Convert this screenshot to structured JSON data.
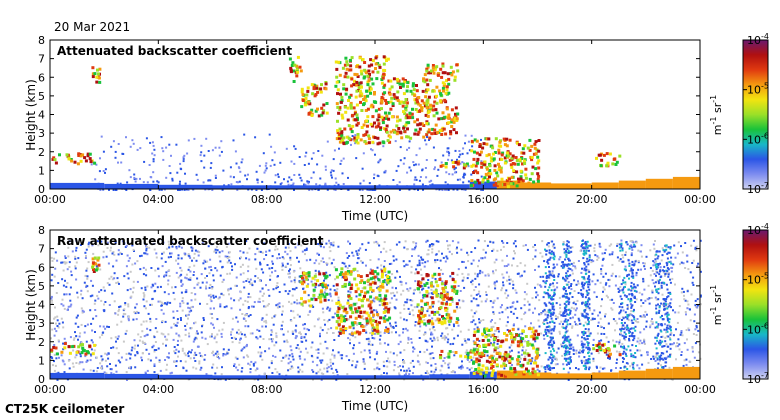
{
  "header": {
    "date": "20 Mar 2021"
  },
  "footer": {
    "instrument": "CT25K ceilometer"
  },
  "colorbar": {
    "scale": "log",
    "range": [
      1e-07,
      0.0001
    ],
    "ticks": [
      {
        "base": "10",
        "exp": "-4"
      },
      {
        "base": "10",
        "exp": "-5"
      },
      {
        "base": "10",
        "exp": "-6"
      },
      {
        "base": "10",
        "exp": "-7"
      }
    ],
    "unit": {
      "m": "m",
      "m_exp": "-1",
      "sr": "sr",
      "sr_exp": "-1"
    },
    "colors": [
      "#cfd3f2",
      "#7d8cf0",
      "#2b56e6",
      "#18b8c8",
      "#19c23a",
      "#9be028",
      "#f2e410",
      "#f59a10",
      "#e03a10",
      "#b01010",
      "#6a1a70"
    ]
  },
  "chart_data": [
    {
      "type": "heatmap",
      "title": "Attenuated backscatter coefficient",
      "xlabel": "Time (UTC)",
      "ylabel": "Height (km)",
      "xlim": [
        0,
        24
      ],
      "ylim": [
        0,
        8
      ],
      "xticks": [
        "00:00",
        "04:00",
        "08:00",
        "12:00",
        "16:00",
        "20:00",
        "00:00"
      ],
      "yticks": [
        "0",
        "1",
        "2",
        "3",
        "4",
        "5",
        "6",
        "7",
        "8"
      ],
      "features": [
        {
          "name": "boundary-layer",
          "t": [
            0,
            2,
            4,
            6,
            8,
            10,
            12,
            14,
            15.5,
            16.5,
            17.5,
            18.5,
            20,
            21,
            22,
            23,
            24
          ],
          "top_km": [
            0.35,
            0.3,
            0.25,
            0.2,
            0.2,
            0.2,
            0.2,
            0.2,
            0.3,
            0.5,
            0.4,
            0.3,
            0.3,
            0.4,
            0.5,
            0.6,
            0.7
          ]
        },
        {
          "name": "cloud-01",
          "t": [
            0,
            1.6
          ],
          "base_km": 1.4,
          "top_km": 2.0
        },
        {
          "name": "cloud-02",
          "t": [
            1.5,
            1.8
          ],
          "base_km": 5.8,
          "top_km": 6.6
        },
        {
          "name": "cloud-03",
          "t": [
            8.8,
            9.3
          ],
          "base_km": 5.8,
          "top_km": 7.2
        },
        {
          "name": "cloud-04",
          "t": [
            9.2,
            10.2
          ],
          "base_km": 4.0,
          "top_km": 5.8
        },
        {
          "name": "cloud-05",
          "t": [
            10.5,
            12.5
          ],
          "base_km": 2.5,
          "top_km": 7.2
        },
        {
          "name": "cloud-06",
          "t": [
            12.5,
            14.0
          ],
          "base_km": 2.8,
          "top_km": 6.0
        },
        {
          "name": "cloud-07",
          "t": [
            13.8,
            15.0
          ],
          "base_km": 3.0,
          "top_km": 6.8
        },
        {
          "name": "cloud-08",
          "t": [
            14.3,
            16.0
          ],
          "base_km": 1.2,
          "top_km": 1.6
        },
        {
          "name": "cloud-09",
          "t": [
            15.5,
            18.0
          ],
          "base_km": 0.2,
          "top_km": 2.8
        },
        {
          "name": "cloud-10",
          "t": [
            20.0,
            21.0
          ],
          "base_km": 1.3,
          "top_km": 2.0
        }
      ]
    },
    {
      "type": "heatmap",
      "title": "Raw attenuated backscatter coefficient",
      "xlabel": "Time (UTC)",
      "ylabel": "Height (km)",
      "xlim": [
        0,
        24
      ],
      "ylim": [
        0,
        8
      ],
      "xticks": [
        "00:00",
        "04:00",
        "08:00",
        "12:00",
        "16:00",
        "20:00",
        "00:00"
      ],
      "yticks": [
        "0",
        "1",
        "2",
        "3",
        "4",
        "5",
        "6",
        "7",
        "8"
      ],
      "features": [
        {
          "name": "boundary-layer",
          "t": [
            0,
            2,
            4,
            6,
            8,
            10,
            12,
            14,
            15.5,
            16.5,
            17.5,
            18.5,
            20,
            21,
            22,
            23,
            24
          ],
          "top_km": [
            0.35,
            0.3,
            0.25,
            0.2,
            0.2,
            0.2,
            0.2,
            0.2,
            0.3,
            0.5,
            0.4,
            0.3,
            0.3,
            0.4,
            0.5,
            0.6,
            0.7
          ]
        },
        {
          "name": "cloud-01",
          "t": [
            0,
            1.6
          ],
          "base_km": 1.4,
          "top_km": 2.0
        },
        {
          "name": "cloud-02",
          "t": [
            1.5,
            1.8
          ],
          "base_km": 5.8,
          "top_km": 6.6
        },
        {
          "name": "cloud-03",
          "t": [
            9.2,
            10.2
          ],
          "base_km": 4.0,
          "top_km": 5.8
        },
        {
          "name": "cloud-04",
          "t": [
            10.5,
            12.5
          ],
          "base_km": 2.5,
          "top_km": 6.0
        },
        {
          "name": "cloud-05",
          "t": [
            13.5,
            15.0
          ],
          "base_km": 3.0,
          "top_km": 5.8
        },
        {
          "name": "cloud-06",
          "t": [
            14.3,
            16.0
          ],
          "base_km": 1.2,
          "top_km": 1.6
        },
        {
          "name": "cloud-07",
          "t": [
            15.5,
            18.0
          ],
          "base_km": 0.2,
          "top_km": 2.8
        },
        {
          "name": "cloud-08",
          "t": [
            20.0,
            21.0
          ],
          "base_km": 1.3,
          "top_km": 2.0
        }
      ]
    }
  ]
}
